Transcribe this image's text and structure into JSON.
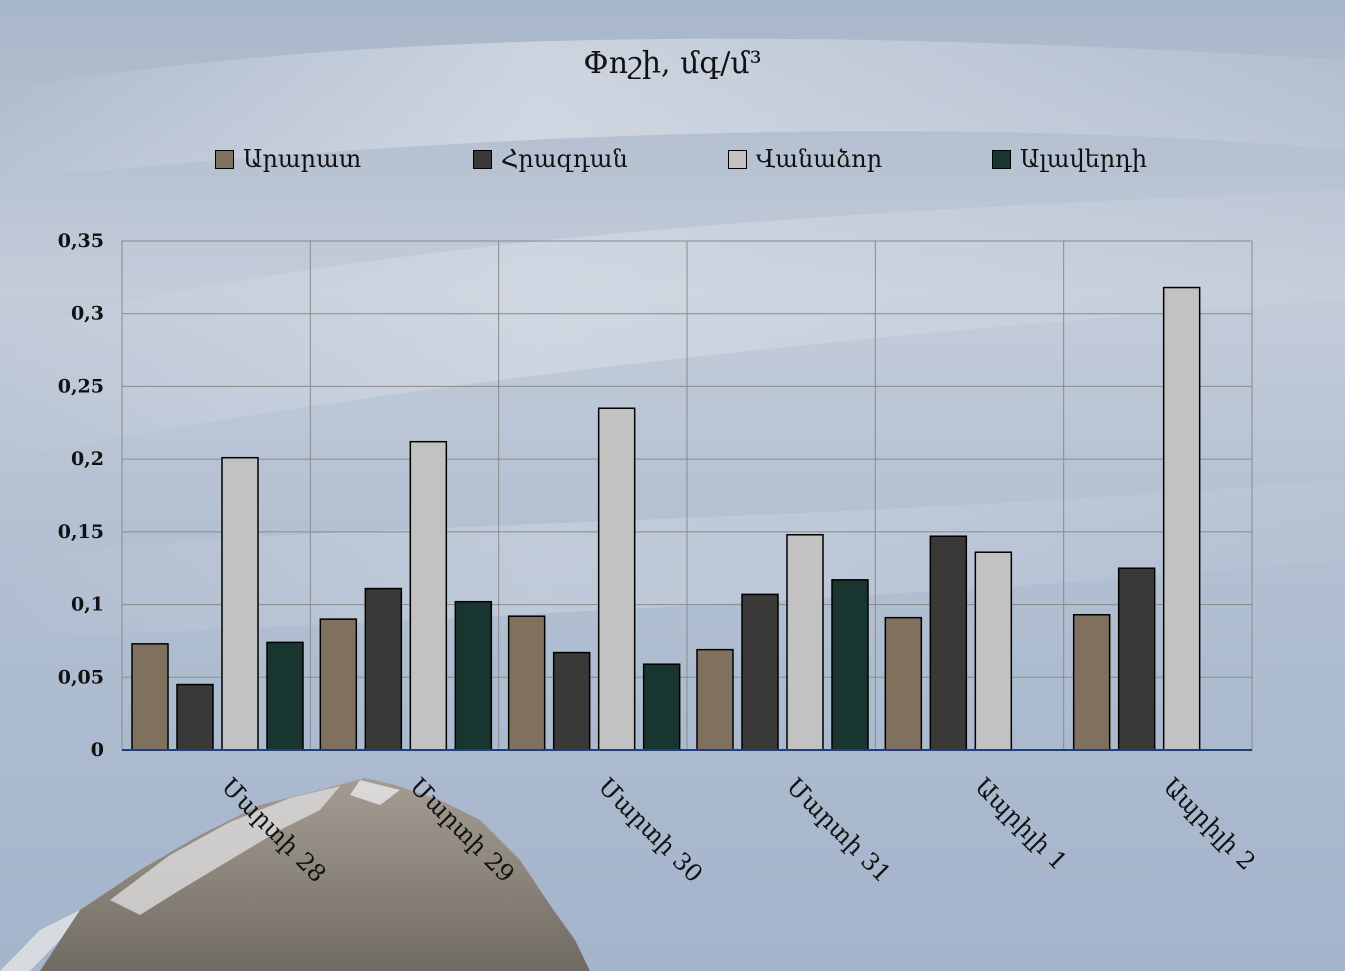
{
  "chart_data": {
    "type": "bar",
    "title": "Փոշի, մգ/մ³",
    "categories": [
      "Մարտի 28",
      "Մարտի 29",
      "Մարտի 30",
      "Մարտի 31",
      "Ապրիլի 1",
      "Ապրիլի 2"
    ],
    "series": [
      {
        "name": "Արարատ",
        "color": "#7f715d",
        "values": [
          0.073,
          0.09,
          0.092,
          0.069,
          0.091,
          0.093
        ]
      },
      {
        "name": "Հրազդան",
        "color": "#3a3937",
        "values": [
          0.045,
          0.111,
          0.067,
          0.107,
          0.147,
          0.125
        ]
      },
      {
        "name": "Վանաձոր",
        "color": "#c2c2c2",
        "values": [
          0.201,
          0.212,
          0.235,
          0.148,
          0.136,
          0.318
        ]
      },
      {
        "name": "Ալավերդի",
        "color": "#19352f",
        "values": [
          0.074,
          0.102,
          0.059,
          0.117,
          null,
          null
        ]
      }
    ],
    "yticks": [
      "0",
      "0,05",
      "0,1",
      "0,15",
      "0,2",
      "0,25",
      "0,3",
      "0,35"
    ],
    "ylim": [
      0,
      0.35
    ],
    "xlabel": "",
    "ylabel": "",
    "grid": true,
    "legend_position": "top"
  }
}
